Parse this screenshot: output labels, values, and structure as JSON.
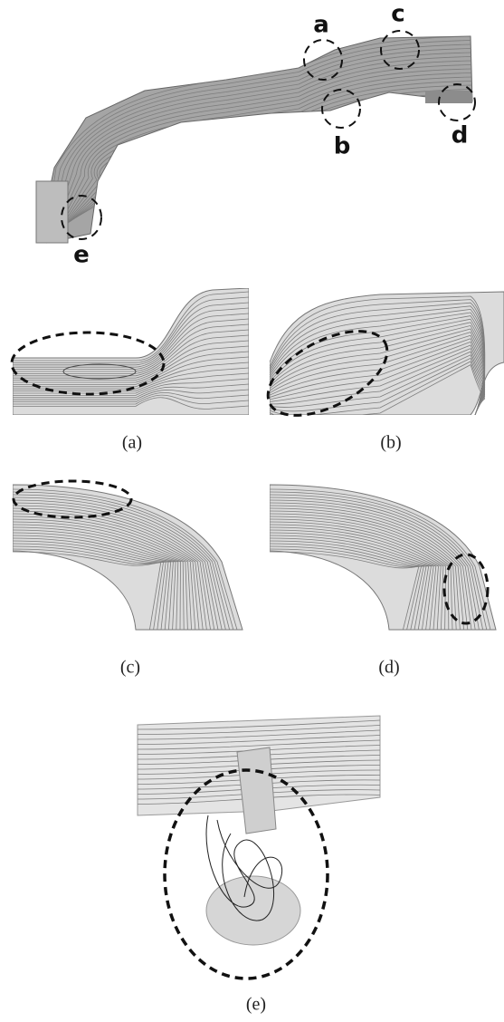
{
  "overview": {
    "labels": [
      "a",
      "b",
      "c",
      "d",
      "e"
    ]
  },
  "panels": [
    {
      "caption": "(a)"
    },
    {
      "caption": "(b)"
    },
    {
      "caption": "(c)"
    },
    {
      "caption": "(d)"
    },
    {
      "caption": "(e)"
    }
  ]
}
